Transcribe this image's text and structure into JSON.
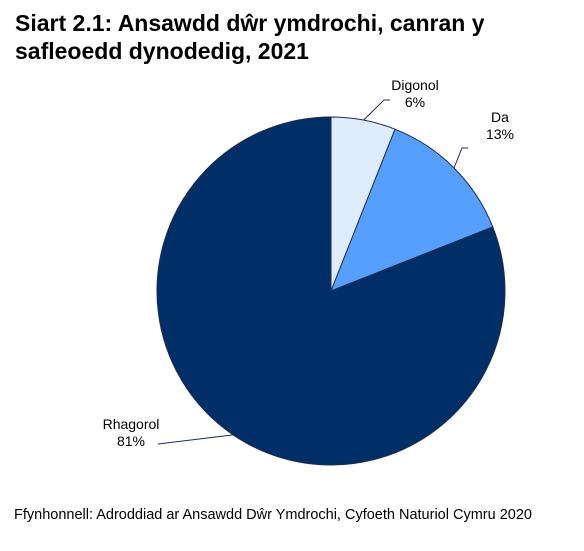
{
  "chart_data": {
    "type": "pie",
    "title": "Siart 2.1: Ansawdd dŵr ymdrochi, canran y safleoedd dynodedig, 2021",
    "slices": [
      {
        "label": "Digonol",
        "value": 6,
        "value_label": "6%",
        "color": "#DDEBFB"
      },
      {
        "label": "Da",
        "value": 13,
        "value_label": "13%",
        "color": "#559FFF"
      },
      {
        "label": "Rhagorol",
        "value": 81,
        "value_label": "81%",
        "color": "#002E66"
      }
    ],
    "start": "12 o'clock",
    "direction": "clockwise",
    "slice_border_color": "#1F2D50"
  },
  "source": "Ffynhonnell: Adroddiad ar Ansawdd Dŵr Ymdrochi, Cyfoeth Naturiol Cymru 2020"
}
